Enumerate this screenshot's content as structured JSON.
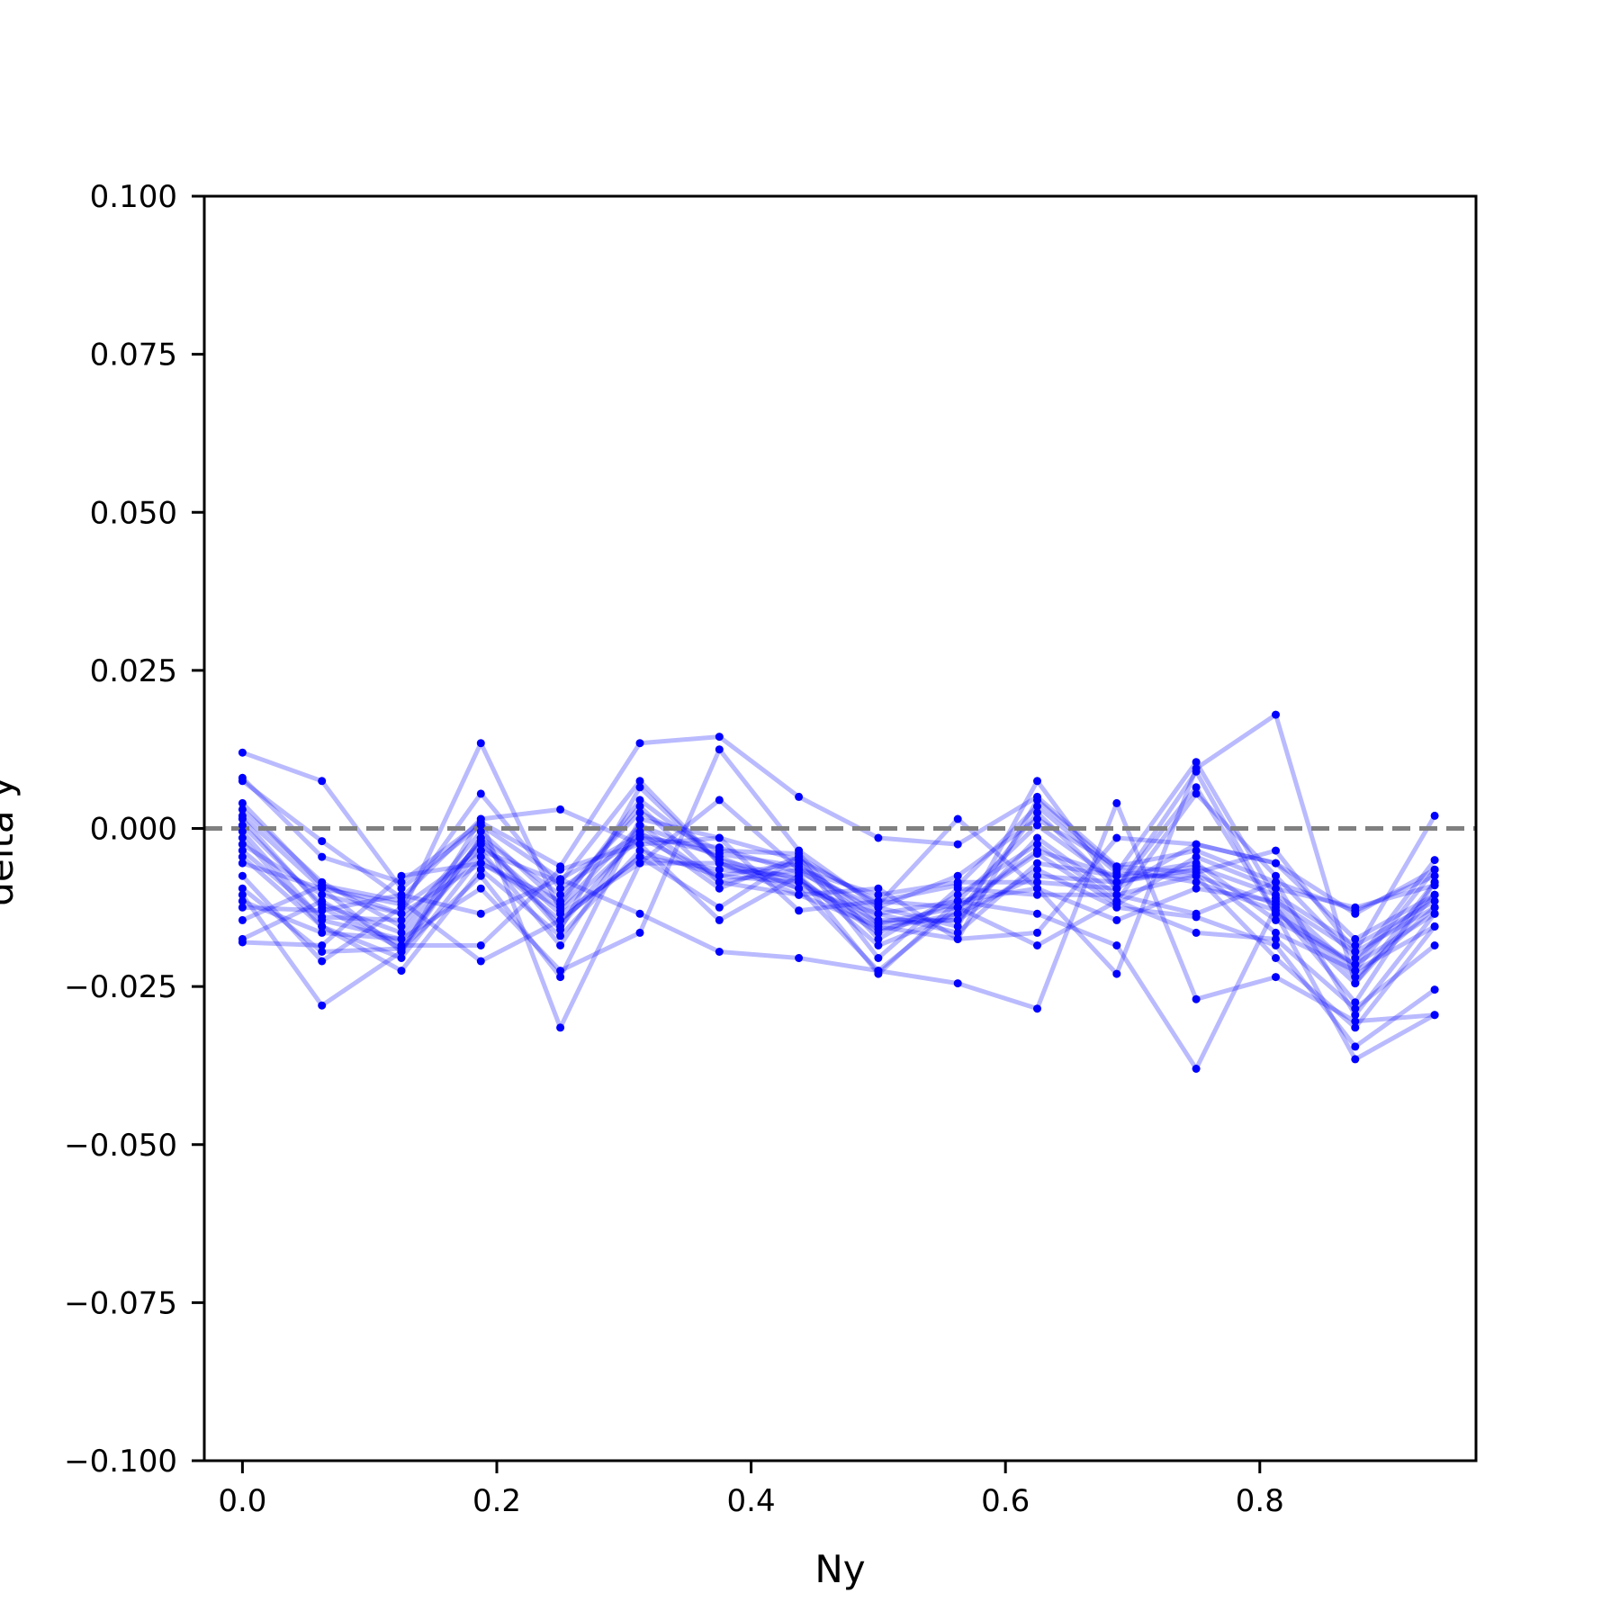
{
  "chart_data": {
    "type": "line",
    "title": "",
    "xlabel": "Ny",
    "ylabel": "delta y",
    "xlim": [
      -0.03,
      0.97
    ],
    "ylim": [
      -0.1,
      0.1
    ],
    "xticks": [
      0.0,
      0.2,
      0.4,
      0.6,
      0.8
    ],
    "xtick_labels": [
      "0.0",
      "0.2",
      "0.4",
      "0.6",
      "0.8"
    ],
    "yticks": [
      0.1,
      0.075,
      0.05,
      0.025,
      0.0,
      -0.025,
      -0.05,
      -0.075,
      -0.1
    ],
    "ytick_labels": [
      "0.100",
      "0.075",
      "0.050",
      "0.025",
      "0.000",
      "−0.025",
      "−0.050",
      "−0.075",
      "−0.100"
    ],
    "reference_line": {
      "y": 0.0,
      "style": "dashed",
      "color": "#808080"
    },
    "grid": false,
    "legend": "none",
    "series_color": "#0000ff",
    "x": [
      0.0,
      0.0625,
      0.125,
      0.1875,
      0.25,
      0.3125,
      0.375,
      0.4375,
      0.5,
      0.5625,
      0.625,
      0.6875,
      0.75,
      0.8125,
      0.875,
      0.9375
    ],
    "series": [
      {
        "values": [
          0.012,
          0.0075,
          -0.0095,
          0.0005,
          -0.008,
          -0.001,
          -0.004,
          -0.006,
          -0.0135,
          -0.0115,
          0.0005,
          -0.0085,
          -0.006,
          -0.0105,
          -0.0185,
          -0.0115
        ]
      },
      {
        "values": [
          0.008,
          -0.0045,
          -0.0085,
          0.001,
          -0.006,
          0.0135,
          0.0145,
          0.005,
          -0.0015,
          -0.0025,
          0.005,
          -0.006,
          -0.007,
          -0.0035,
          -0.0195,
          0.002
        ]
      },
      {
        "values": [
          0.0075,
          -0.002,
          -0.011,
          0.0015,
          0.003,
          -0.0025,
          -0.0015,
          -0.005,
          -0.0115,
          -0.009,
          0.0035,
          -0.007,
          0.0105,
          -0.011,
          -0.0225,
          -0.0065
        ]
      },
      {
        "values": [
          0.004,
          -0.009,
          -0.0135,
          0.0135,
          -0.013,
          -0.0015,
          -0.003,
          -0.007,
          -0.0125,
          -0.0075,
          0.0015,
          -0.006,
          -0.0035,
          -0.0085,
          -0.013,
          -0.0075
        ]
      },
      {
        "values": [
          0.003,
          -0.0085,
          -0.0155,
          -0.0005,
          -0.012,
          0.0045,
          -0.005,
          -0.008,
          -0.016,
          -0.0135,
          0.0025,
          -0.0095,
          0.009,
          -0.0135,
          -0.0215,
          -0.005
        ]
      },
      {
        "values": [
          0.002,
          -0.0095,
          -0.012,
          0.0055,
          -0.0095,
          -0.0015,
          -0.0075,
          -0.0055,
          -0.0145,
          -0.0145,
          -0.0015,
          -0.0105,
          -0.0075,
          -0.012,
          -0.0235,
          -0.0125
        ]
      },
      {
        "values": [
          0.0015,
          -0.0125,
          -0.019,
          -0.0015,
          -0.0105,
          0.0025,
          -0.0035,
          -0.004,
          -0.0175,
          -0.0105,
          -0.0025,
          -0.0115,
          0.0055,
          -0.0075,
          -0.0205,
          -0.0105
        ]
      },
      {
        "values": [
          0.0005,
          -0.012,
          -0.0165,
          -0.002,
          -0.016,
          0.0065,
          -0.0055,
          -0.0085,
          -0.015,
          -0.0125,
          -0.004,
          -0.012,
          -0.0045,
          -0.0095,
          -0.0125,
          -0.009
        ]
      },
      {
        "values": [
          -0.0005,
          -0.0145,
          -0.0175,
          -0.0035,
          -0.0185,
          0.0005,
          -0.0045,
          -0.0095,
          -0.0135,
          -0.0165,
          -0.0055,
          -0.0075,
          -0.0055,
          -0.0145,
          -0.0215,
          -0.0135
        ]
      },
      {
        "values": [
          -0.0015,
          -0.0155,
          -0.0205,
          -0.0045,
          -0.0145,
          -0.0045,
          -0.0065,
          -0.0075,
          -0.0185,
          -0.0135,
          -0.0075,
          -0.0085,
          -0.0065,
          -0.0165,
          -0.0225,
          -0.0155
        ]
      },
      {
        "values": [
          -0.0025,
          -0.0105,
          -0.0135,
          -0.0055,
          -0.0115,
          0.0035,
          -0.0085,
          -0.0065,
          -0.0105,
          -0.0085,
          -0.0085,
          -0.0095,
          -0.0025,
          -0.0055,
          -0.0175,
          -0.0105
        ]
      },
      {
        "values": [
          -0.0035,
          -0.014,
          -0.0145,
          -0.0025,
          -0.0135,
          -0.0055,
          -0.0055,
          -0.0105,
          -0.0155,
          -0.0175,
          0.0045,
          -0.0065,
          -0.0085,
          -0.013,
          -0.0245,
          -0.0085
        ]
      },
      {
        "values": [
          -0.0045,
          -0.0155,
          -0.0225,
          -0.0065,
          -0.017,
          -0.0035,
          -0.0075,
          -0.0085,
          -0.0165,
          -0.0115,
          -0.0095,
          -0.0145,
          -0.0095,
          -0.0115,
          -0.0195,
          -0.0125
        ]
      },
      {
        "values": [
          -0.0055,
          -0.0095,
          -0.0195,
          -0.0015,
          -0.0155,
          -0.0005,
          -0.0095,
          -0.0045,
          -0.0205,
          -0.0095,
          -0.0105,
          -0.0105,
          -0.0135,
          -0.0085,
          -0.0295,
          -0.0135
        ]
      },
      {
        "values": [
          -0.0075,
          -0.021,
          -0.0125,
          -0.0035,
          -0.0085,
          0.0075,
          -0.0055,
          -0.0095,
          -0.0225,
          -0.0125,
          -0.0185,
          -0.0115,
          -0.0165,
          -0.0175,
          -0.0285,
          -0.0185
        ]
      },
      {
        "values": [
          -0.0095,
          -0.0195,
          -0.019,
          -0.0075,
          -0.0235,
          0.0015,
          -0.0015,
          -0.013,
          -0.0115,
          -0.0125,
          -0.0035,
          -0.0075,
          -0.0075,
          -0.0205,
          -0.0315,
          -0.0155
        ]
      },
      {
        "values": [
          -0.0105,
          -0.028,
          -0.0195,
          0.0015,
          -0.0315,
          -0.0055,
          0.0045,
          -0.0065,
          -0.015,
          -0.0145,
          -0.0065,
          -0.0125,
          -0.014,
          -0.0185,
          -0.0345,
          -0.0255
        ]
      },
      {
        "values": [
          -0.0115,
          -0.0165,
          -0.0175,
          -0.0095,
          -0.0225,
          -0.0165,
          0.0125,
          -0.0035,
          -0.0125,
          -0.0155,
          0.0075,
          -0.0095,
          0.0065,
          -0.0135,
          -0.0365,
          -0.0295
        ]
      },
      {
        "values": [
          -0.0125,
          -0.013,
          -0.0105,
          -0.0135,
          -0.008,
          -0.0135,
          -0.0195,
          -0.0205,
          -0.0225,
          -0.0245,
          -0.0285,
          0.004,
          -0.027,
          -0.0235,
          -0.0305,
          -0.0295
        ]
      },
      {
        "values": [
          -0.0145,
          -0.009,
          -0.0115,
          -0.021,
          -0.0145,
          -0.0045,
          -0.0125,
          -0.0045,
          -0.012,
          0.0015,
          -0.0095,
          -0.023,
          0.0095,
          0.018,
          -0.0245,
          -0.0105
        ]
      },
      {
        "values": [
          -0.0175,
          -0.0115,
          -0.0185,
          -0.0185,
          -0.0065,
          -0.0025,
          -0.0145,
          -0.0075,
          -0.023,
          -0.0115,
          -0.0135,
          -0.0185,
          -0.038,
          -0.0125,
          -0.0275,
          -0.0085
        ]
      },
      {
        "values": [
          -0.018,
          -0.0185,
          -0.0075,
          -0.0055,
          -0.0125,
          0.0005,
          -0.0085,
          -0.0105,
          -0.0095,
          -0.0175,
          -0.0165,
          -0.0015,
          -0.0025,
          -0.0055,
          -0.0135,
          -0.0065
        ]
      }
    ]
  }
}
